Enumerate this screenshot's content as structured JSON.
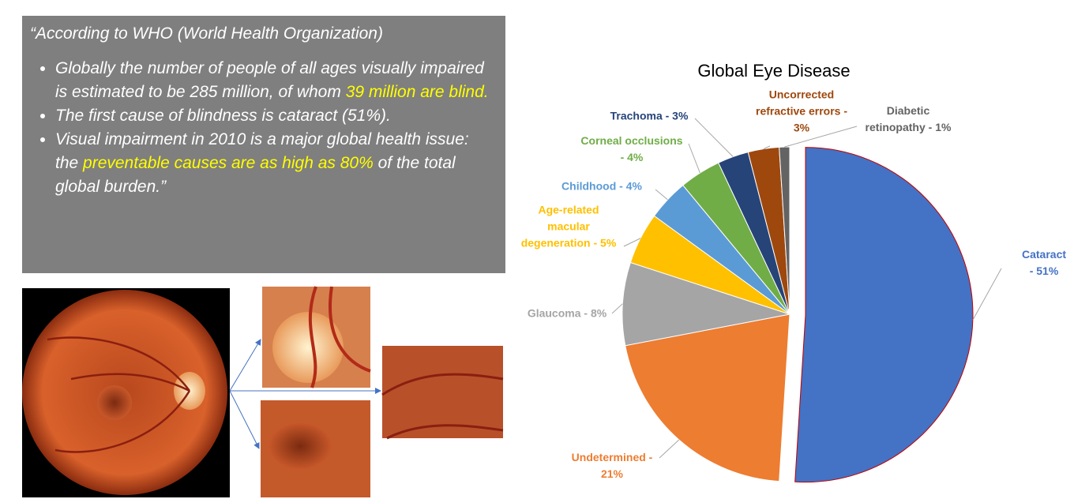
{
  "text_box": {
    "intro": "“According to WHO (World Health Organization)",
    "highlight_color": "#ffff00",
    "bullets": [
      [
        {
          "text": "Globally the number of people of all ages visually impaired is estimated to be 285 million, of whom ",
          "highlight": false
        },
        {
          "text": "39 million are blind.",
          "highlight": true
        }
      ],
      [
        {
          "text": "The first cause of blindness is cataract (51%).",
          "highlight": false
        }
      ],
      [
        {
          "text": "Visual impairment in 2010 is a major global health issue: the ",
          "highlight": false
        },
        {
          "text": "preventable causes are as high as 80%",
          "highlight": true
        },
        {
          "text": " of the total global burden.”",
          "highlight": false
        }
      ]
    ]
  },
  "chart_data": {
    "type": "pie",
    "title": "Global Eye Disease",
    "values": [
      51,
      21,
      8,
      5,
      4,
      4,
      3,
      3,
      1
    ],
    "value_labels": [
      "Cataract - 51%",
      "Undetermined -\n21%",
      "Glaucoma - 8%",
      "Age-related\nmacular\ndegeneration - 5%",
      "Childhood - 4%",
      "Corneal occlusions\n- 4%",
      "Trachoma - 3%",
      "Uncorrected\nrefractive errors -\n3%",
      "Diabetic\nretinopathy - 1%"
    ],
    "colors": [
      "#4472c4",
      "#ed7d31",
      "#a5a5a5",
      "#ffc000",
      "#5b9bd5",
      "#70ad47",
      "#264478",
      "#9e480e",
      "#636363"
    ],
    "exploded_slice": 0
  }
}
